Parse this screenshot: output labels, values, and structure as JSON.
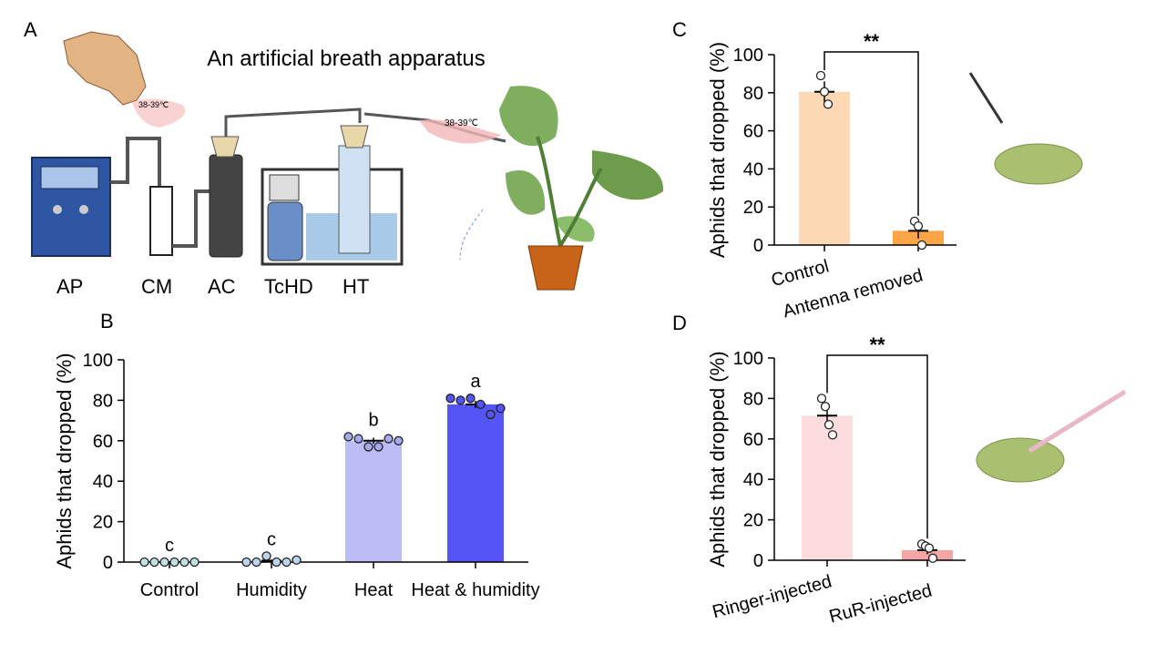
{
  "diagram": {
    "label": "A",
    "title": "An artificial breath apparatus",
    "components": [
      "AP",
      "CM",
      "AC",
      "TcHD",
      "HT"
    ],
    "temperature_labels": [
      "38-39℃",
      "38-39℃"
    ]
  },
  "chart_data": [
    {
      "type": "bar",
      "label": "B",
      "y_label": "Aphids that dropped (%)",
      "categories": [
        "Control",
        "Humidity",
        "Heat",
        "Heat  & humidity"
      ],
      "values": [
        0,
        0.7,
        60,
        78
      ],
      "errors": [
        0,
        0.5,
        1.5,
        1.8
      ],
      "colors": [
        "#d6ecec",
        "#d7e4f4",
        "#bcbdf7",
        "#5555f5"
      ],
      "points": [
        [
          0,
          0,
          0,
          0,
          0,
          0
        ],
        [
          0,
          0,
          3,
          0,
          0,
          1
        ],
        [
          62,
          61,
          57,
          57,
          61,
          60
        ],
        [
          81,
          80,
          81,
          78,
          73,
          76
        ]
      ],
      "point_colors": [
        "#bfe3e3",
        "#bcd4f0",
        "#a8aaf0",
        "#5555f5"
      ],
      "group_letters": [
        "c",
        "c",
        "b",
        "a"
      ],
      "ylim": [
        0,
        100
      ],
      "yticks": [
        0,
        20,
        40,
        60,
        80,
        100
      ]
    },
    {
      "type": "bar",
      "label": "C",
      "y_label": "Aphids that dropped (%)",
      "categories": [
        "Control",
        "Antenna removed"
      ],
      "values": [
        80.5,
        7.5
      ],
      "errors": [
        5.5,
        4
      ],
      "colors": [
        "#fdd8b5",
        "#fba546"
      ],
      "points": [
        [
          89,
          80.5,
          74
        ],
        [
          12.5,
          10,
          0
        ]
      ],
      "point_colors": [
        "#ffffff",
        "#ffffff"
      ],
      "significance": "**",
      "ylim": [
        0,
        100
      ],
      "yticks": [
        0,
        20,
        40,
        60,
        80,
        100
      ]
    },
    {
      "type": "bar",
      "label": "D",
      "y_label": "Aphids that dropped (%)",
      "categories": [
        "Ringer-injected",
        "RuR-injected"
      ],
      "values": [
        71.5,
        5
      ],
      "errors": [
        4,
        2
      ],
      "colors": [
        "#fcdcdc",
        "#f4a5a5"
      ],
      "points": [
        [
          80,
          76,
          67,
          62
        ],
        [
          8,
          7,
          6,
          1
        ]
      ],
      "point_colors": [
        "#ffffff",
        "#ffffff"
      ],
      "significance": "**",
      "ylim": [
        0,
        100
      ],
      "yticks": [
        0,
        20,
        40,
        60,
        80,
        100
      ]
    }
  ]
}
